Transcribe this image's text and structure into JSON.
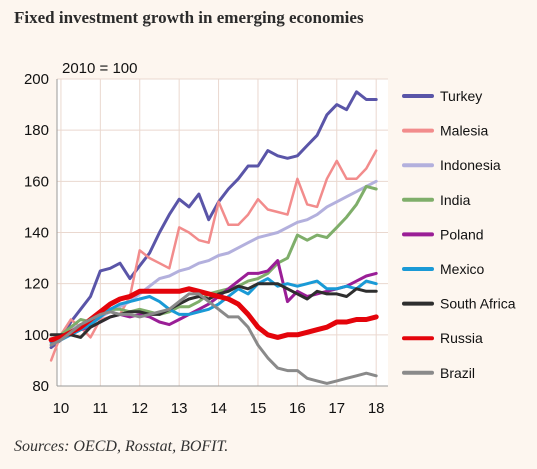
{
  "title": "Fixed investment growth in emerging economies",
  "source": "Sources: OECD, Rosstat, BOFIT.",
  "chart_data": {
    "type": "line",
    "title": "Fixed investment growth in emerging economies",
    "note": "2010 = 100",
    "xlabel": "",
    "ylabel": "",
    "xlim": [
      2009.9,
      2018.3
    ],
    "ylim": [
      80,
      200
    ],
    "x_ticks": [
      "10",
      "11",
      "12",
      "13",
      "14",
      "15",
      "16",
      "17",
      "18"
    ],
    "y_ticks": [
      "80",
      "100",
      "120",
      "140",
      "160",
      "180",
      "200"
    ],
    "grid": true,
    "legend_position": "right",
    "series": [
      {
        "name": "Turkey",
        "color": "#5a55a8",
        "width": 3,
        "x": [
          2009.75,
          2010.0,
          2010.25,
          2010.5,
          2010.75,
          2011.0,
          2011.25,
          2011.5,
          2011.75,
          2012.0,
          2012.25,
          2012.5,
          2012.75,
          2013.0,
          2013.25,
          2013.5,
          2013.75,
          2014.0,
          2014.25,
          2014.5,
          2014.75,
          2015.0,
          2015.25,
          2015.5,
          2015.75,
          2016.0,
          2016.25,
          2016.5,
          2016.75,
          2017.0,
          2017.25,
          2017.5,
          2017.75,
          2018.0
        ],
        "y": [
          95,
          98,
          105,
          110,
          115,
          125,
          126,
          128,
          122,
          127,
          132,
          140,
          147,
          153,
          150,
          155,
          145,
          152,
          157,
          161,
          166,
          166,
          172,
          170,
          169,
          170,
          174,
          178,
          186,
          190,
          188,
          195,
          192,
          192
        ]
      },
      {
        "name": "Malesia",
        "color": "#f28c8c",
        "width": 2.5,
        "x": [
          2009.75,
          2010.0,
          2010.25,
          2010.5,
          2010.75,
          2011.0,
          2011.25,
          2011.5,
          2011.75,
          2012.0,
          2012.25,
          2012.5,
          2012.75,
          2013.0,
          2013.25,
          2013.5,
          2013.75,
          2014.0,
          2014.25,
          2014.5,
          2014.75,
          2015.0,
          2015.25,
          2015.5,
          2015.75,
          2016.0,
          2016.25,
          2016.5,
          2016.75,
          2017.0,
          2017.25,
          2017.5,
          2017.75,
          2018.0
        ],
        "y": [
          90,
          100,
          106,
          103,
          99,
          106,
          107,
          108,
          115,
          133,
          130,
          128,
          126,
          142,
          140,
          137,
          136,
          152,
          143,
          143,
          147,
          153,
          149,
          148,
          147,
          161,
          151,
          150,
          161,
          168,
          161,
          161,
          165,
          172
        ]
      },
      {
        "name": "Indonesia",
        "color": "#b3b0dd",
        "width": 3,
        "x": [
          2009.75,
          2010.0,
          2010.25,
          2010.5,
          2010.75,
          2011.0,
          2011.25,
          2011.5,
          2011.75,
          2012.0,
          2012.25,
          2012.5,
          2012.75,
          2013.0,
          2013.25,
          2013.5,
          2013.75,
          2014.0,
          2014.25,
          2014.5,
          2014.75,
          2015.0,
          2015.25,
          2015.5,
          2015.75,
          2016.0,
          2016.25,
          2016.5,
          2016.75,
          2017.0,
          2017.25,
          2017.5,
          2017.75,
          2018.0
        ],
        "y": [
          97,
          100,
          102,
          104,
          105,
          107,
          109,
          111,
          113,
          116,
          119,
          122,
          123,
          125,
          126,
          128,
          129,
          131,
          132,
          134,
          136,
          138,
          139,
          140,
          142,
          144,
          145,
          147,
          150,
          152,
          154,
          156,
          158,
          160
        ]
      },
      {
        "name": "India",
        "color": "#7fae6a",
        "width": 3,
        "x": [
          2009.75,
          2010.0,
          2010.25,
          2010.5,
          2010.75,
          2011.0,
          2011.25,
          2011.5,
          2011.75,
          2012.0,
          2012.25,
          2012.5,
          2012.75,
          2013.0,
          2013.25,
          2013.5,
          2013.75,
          2014.0,
          2014.25,
          2014.5,
          2014.75,
          2015.0,
          2015.25,
          2015.5,
          2015.75,
          2016.0,
          2016.25,
          2016.5,
          2016.75,
          2017.0,
          2017.25,
          2017.5,
          2017.75,
          2018.0
        ],
        "y": [
          98,
          100,
          103,
          106,
          105,
          108,
          110,
          110,
          109,
          110,
          109,
          108,
          109,
          111,
          111,
          113,
          116,
          117,
          118,
          119,
          121,
          122,
          124,
          128,
          130,
          139,
          137,
          139,
          138,
          142,
          146,
          151,
          158,
          157
        ]
      },
      {
        "name": "Poland",
        "color": "#9a1e96",
        "width": 3,
        "x": [
          2009.75,
          2010.0,
          2010.25,
          2010.5,
          2010.75,
          2011.0,
          2011.25,
          2011.5,
          2011.75,
          2012.0,
          2012.25,
          2012.5,
          2012.75,
          2013.0,
          2013.25,
          2013.5,
          2013.75,
          2014.0,
          2014.25,
          2014.5,
          2014.75,
          2015.0,
          2015.25,
          2015.5,
          2015.75,
          2016.0,
          2016.25,
          2016.5,
          2016.75,
          2017.0,
          2017.25,
          2017.5,
          2017.75,
          2018.0
        ],
        "y": [
          98,
          99,
          100,
          102,
          103,
          105,
          107,
          108,
          107,
          108,
          107,
          105,
          104,
          106,
          108,
          110,
          112,
          115,
          118,
          121,
          124,
          124,
          125,
          129,
          113,
          117,
          115,
          116,
          117,
          118,
          119,
          121,
          123,
          124
        ]
      },
      {
        "name": "Mexico",
        "color": "#1a9ad6",
        "width": 3,
        "x": [
          2009.75,
          2010.0,
          2010.25,
          2010.5,
          2010.75,
          2011.0,
          2011.25,
          2011.5,
          2011.75,
          2012.0,
          2012.25,
          2012.5,
          2012.75,
          2013.0,
          2013.25,
          2013.5,
          2013.75,
          2014.0,
          2014.25,
          2014.5,
          2014.75,
          2015.0,
          2015.25,
          2015.5,
          2015.75,
          2016.0,
          2016.25,
          2016.5,
          2016.75,
          2017.0,
          2017.25,
          2017.5,
          2017.75,
          2018.0
        ],
        "y": [
          97,
          98,
          100,
          102,
          104,
          107,
          110,
          112,
          113,
          114,
          115,
          113,
          110,
          108,
          108,
          109,
          110,
          112,
          115,
          118,
          116,
          120,
          122,
          119,
          120,
          119,
          120,
          121,
          118,
          118,
          119,
          118,
          121,
          120
        ]
      },
      {
        "name": "South Africa",
        "color": "#2e2e2e",
        "width": 3,
        "x": [
          2009.75,
          2010.0,
          2010.25,
          2010.5,
          2010.75,
          2011.0,
          2011.25,
          2011.5,
          2011.75,
          2012.0,
          2012.25,
          2012.5,
          2012.75,
          2013.0,
          2013.25,
          2013.5,
          2013.75,
          2014.0,
          2014.25,
          2014.5,
          2014.75,
          2015.0,
          2015.25,
          2015.5,
          2015.75,
          2016.0,
          2016.25,
          2016.5,
          2016.75,
          2017.0,
          2017.25,
          2017.5,
          2017.75,
          2018.0
        ],
        "y": [
          100,
          100,
          100,
          99,
          103,
          105,
          107,
          108,
          109,
          109,
          108,
          108,
          110,
          112,
          114,
          115,
          114,
          116,
          117,
          119,
          118,
          120,
          120,
          120,
          118,
          116,
          114,
          117,
          116,
          116,
          115,
          118,
          117,
          117
        ]
      },
      {
        "name": "Russia",
        "color": "#e4040b",
        "width": 5,
        "x": [
          2009.75,
          2010.0,
          2010.25,
          2010.5,
          2010.75,
          2011.0,
          2011.25,
          2011.5,
          2011.75,
          2012.0,
          2012.25,
          2012.5,
          2012.75,
          2013.0,
          2013.25,
          2013.5,
          2013.75,
          2014.0,
          2014.25,
          2014.5,
          2014.75,
          2015.0,
          2015.25,
          2015.5,
          2015.75,
          2016.0,
          2016.25,
          2016.5,
          2016.75,
          2017.0,
          2017.25,
          2017.5,
          2017.75,
          2018.0
        ],
        "y": [
          98,
          99,
          101,
          103,
          106,
          109,
          112,
          114,
          115,
          117,
          117,
          117,
          117,
          117,
          118,
          117,
          116,
          115,
          114,
          112,
          108,
          103,
          100,
          99,
          100,
          100,
          101,
          102,
          103,
          105,
          105,
          106,
          106,
          107
        ]
      },
      {
        "name": "Brazil",
        "color": "#8a8a8a",
        "width": 3,
        "x": [
          2009.75,
          2010.0,
          2010.25,
          2010.5,
          2010.75,
          2011.0,
          2011.25,
          2011.5,
          2011.75,
          2012.0,
          2012.25,
          2012.5,
          2012.75,
          2013.0,
          2013.25,
          2013.5,
          2013.75,
          2014.0,
          2014.25,
          2014.5,
          2014.75,
          2015.0,
          2015.25,
          2015.5,
          2015.75,
          2016.0,
          2016.25,
          2016.5,
          2016.75,
          2017.0,
          2017.25,
          2017.5,
          2017.75,
          2018.0
        ],
        "y": [
          96,
          98,
          101,
          104,
          106,
          108,
          109,
          108,
          108,
          107,
          108,
          109,
          110,
          113,
          116,
          116,
          113,
          110,
          107,
          107,
          103,
          96,
          91,
          87,
          86,
          86,
          83,
          82,
          81,
          82,
          83,
          84,
          85,
          84
        ]
      }
    ]
  }
}
